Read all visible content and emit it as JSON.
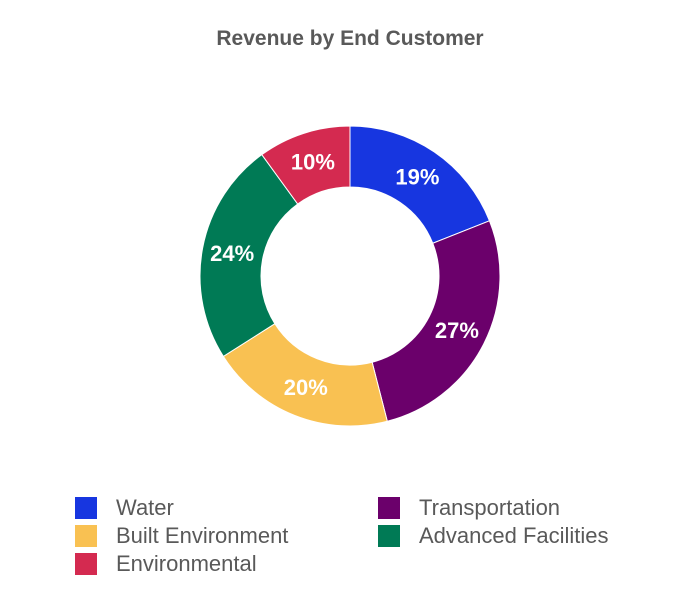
{
  "chart_data": {
    "type": "pie",
    "title": "Revenue by End Customer",
    "donut": true,
    "slices": [
      {
        "label": "Water",
        "value": 19,
        "display": "19%",
        "color": "#1736E0"
      },
      {
        "label": "Transportation",
        "value": 27,
        "display": "27%",
        "color": "#6B006B"
      },
      {
        "label": "Built Environment",
        "value": 20,
        "display": "20%",
        "color": "#F9C152"
      },
      {
        "label": "Advanced Facilities",
        "value": 24,
        "display": "24%",
        "color": "#007A55"
      },
      {
        "label": "Environmental",
        "value": 10,
        "display": "10%",
        "color": "#D42A50"
      }
    ],
    "legend_position": "bottom"
  }
}
